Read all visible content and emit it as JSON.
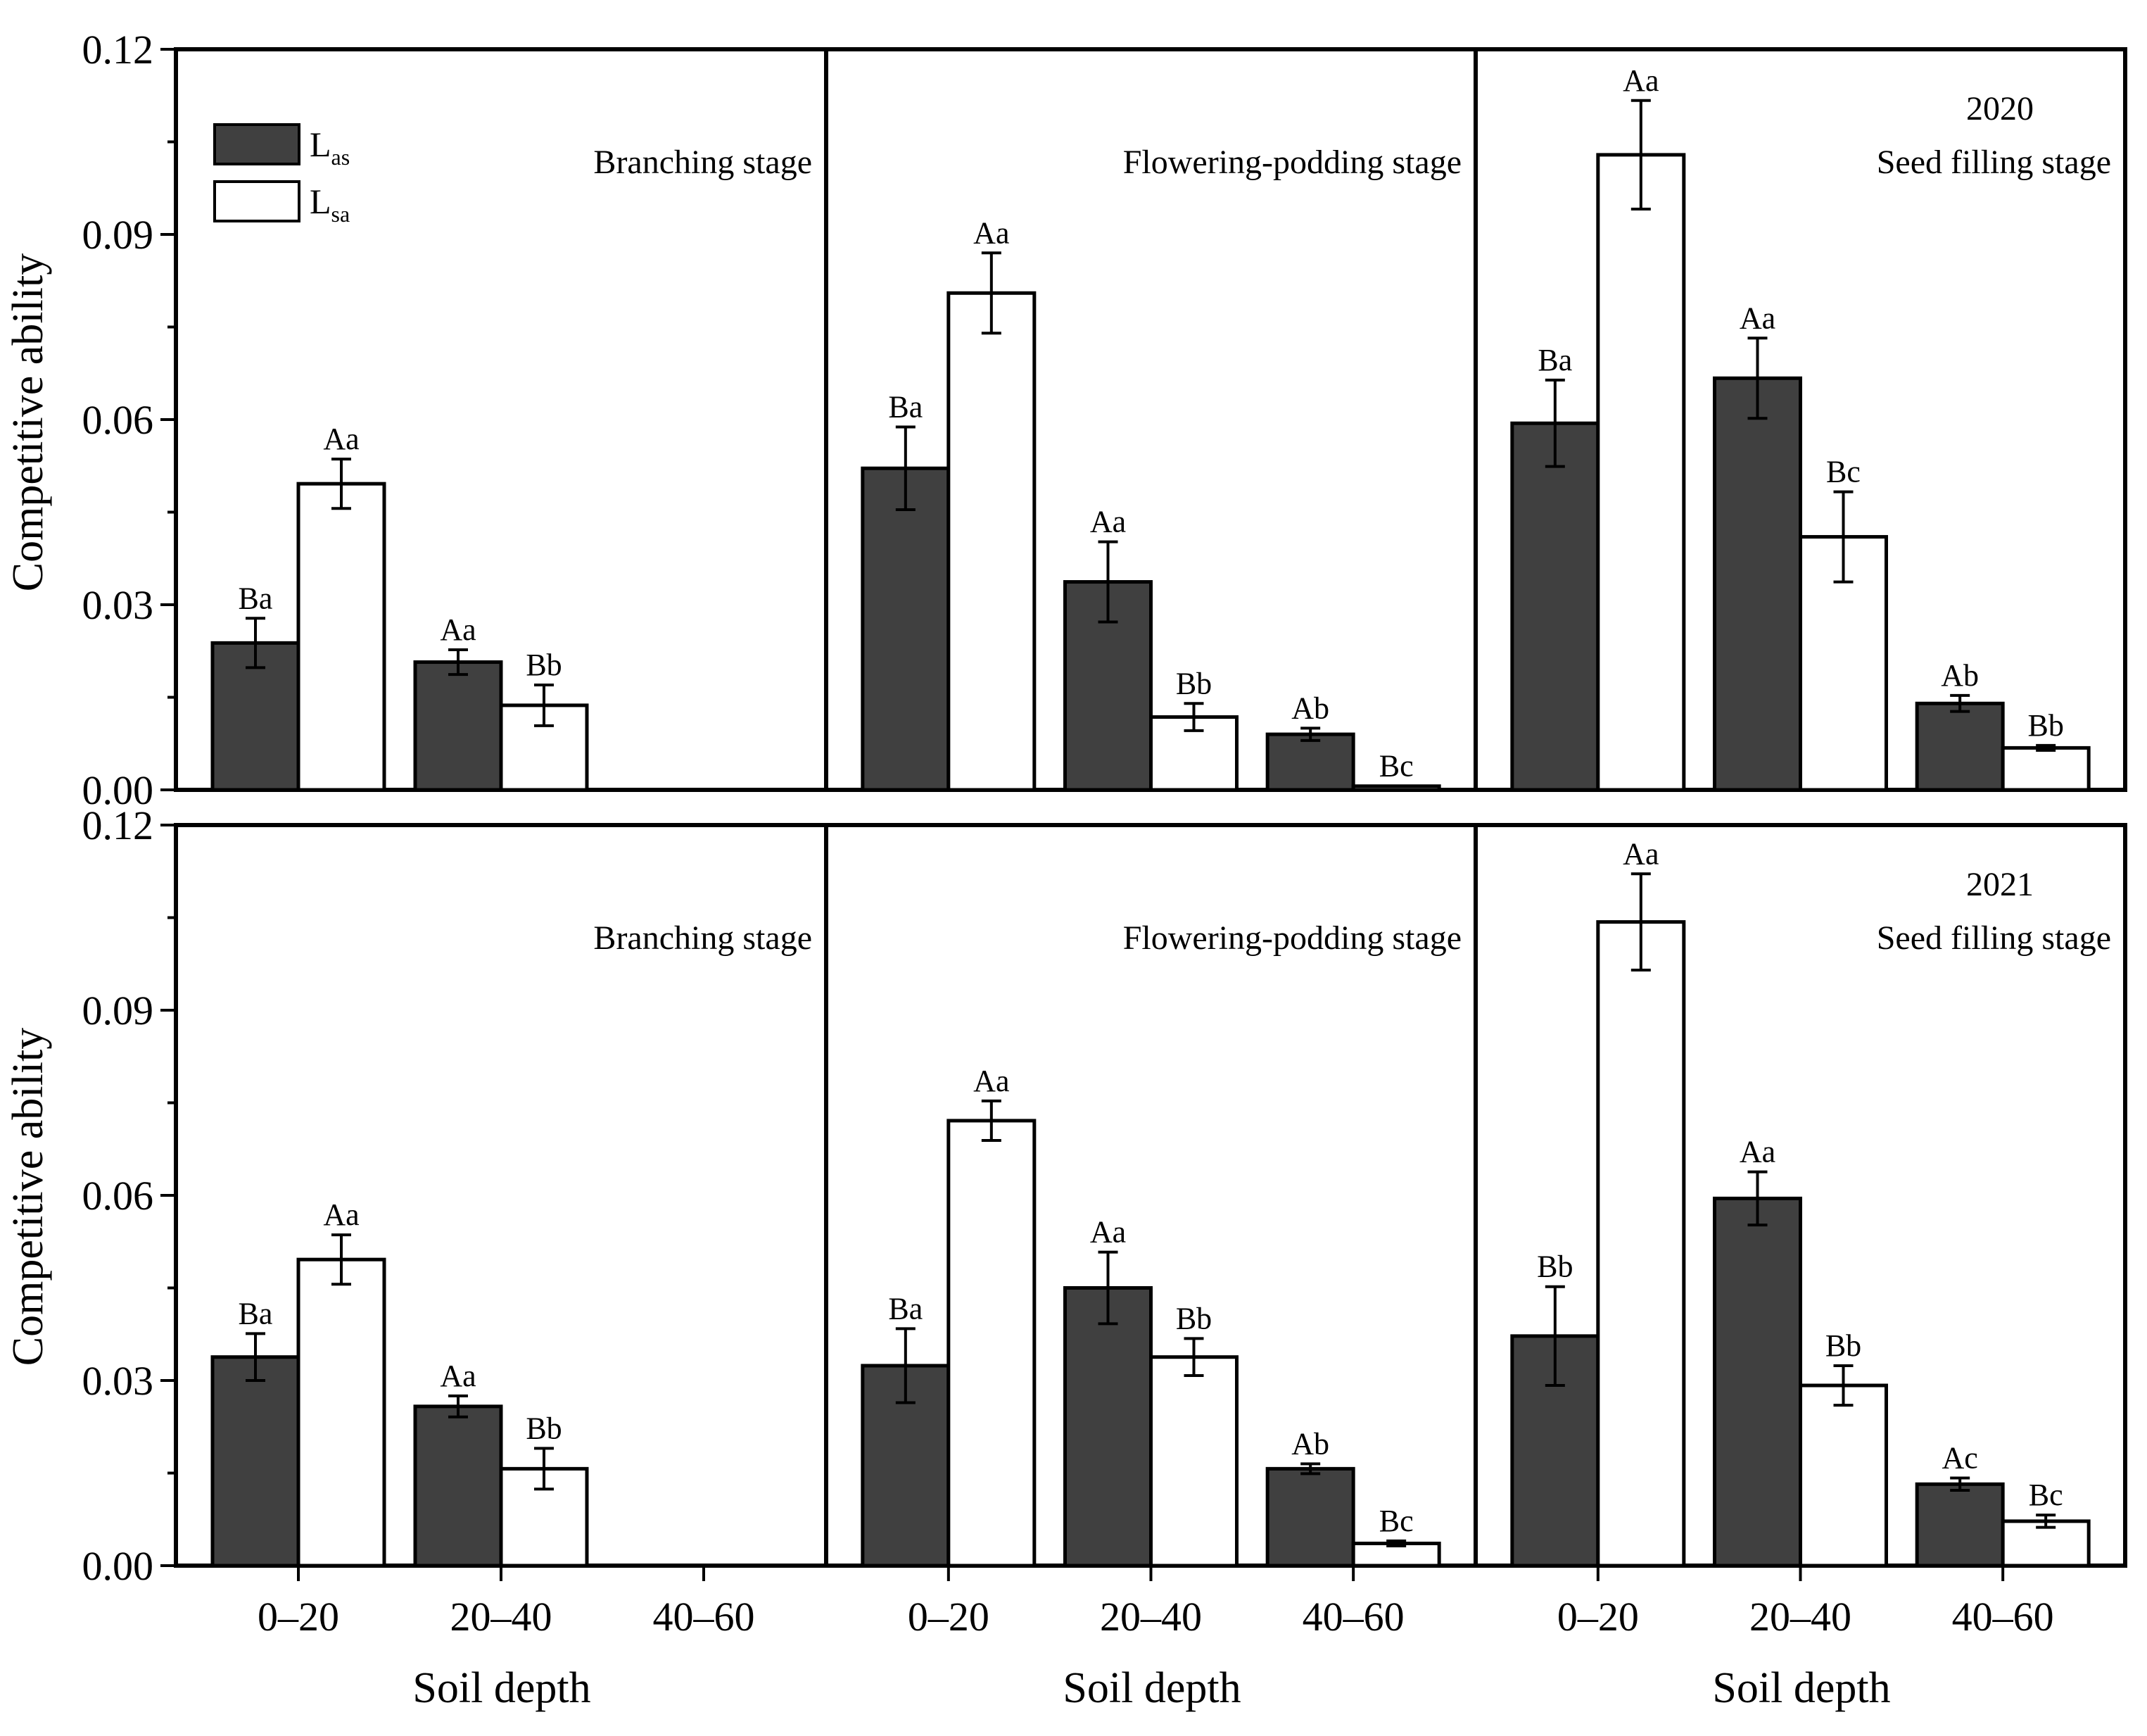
{
  "chart_data": {
    "type": "bar",
    "ylabel": "Competitive ability",
    "xlabel": "Soil depth",
    "ylim": [
      0,
      0.12
    ],
    "y_ticks": [
      "0.00",
      "0.03",
      "0.06",
      "0.09",
      "0.12"
    ],
    "categories": [
      "0–20",
      "20–40",
      "40–60"
    ],
    "legend": {
      "position": "top-left",
      "entries": [
        {
          "base": "L",
          "sub": "as",
          "color": "#404040"
        },
        {
          "base": "L",
          "sub": "sa",
          "color": "#ffffff"
        }
      ]
    },
    "panels": [
      {
        "year": "",
        "stage": "Branching stage",
        "las": [
          0.0238,
          0.0207,
          0
        ],
        "las_err": [
          0.004,
          0.002,
          0
        ],
        "lsa": [
          0.0496,
          0.0137,
          0
        ],
        "lsa_err": [
          0.004,
          0.0033,
          0
        ],
        "las_sig": [
          "Ba",
          "Aa",
          ""
        ],
        "lsa_sig": [
          "Aa",
          "Bb",
          ""
        ]
      },
      {
        "year": "",
        "stage": "Flowering-podding stage",
        "las": [
          0.0521,
          0.0337,
          0.009
        ],
        "las_err": [
          0.0067,
          0.0065,
          0.001
        ],
        "lsa": [
          0.0805,
          0.0118,
          0.0006
        ],
        "lsa_err": [
          0.0065,
          0.0022,
          0
        ],
        "las_sig": [
          "Ba",
          "Aa",
          "Ab"
        ],
        "lsa_sig": [
          "Aa",
          "Bb",
          "Bc"
        ]
      },
      {
        "year": "2020",
        "stage": "Seed filling stage",
        "las": [
          0.0594,
          0.0667,
          0.014
        ],
        "las_err": [
          0.007,
          0.0065,
          0.0013
        ],
        "lsa": [
          0.1029,
          0.041,
          0.0068
        ],
        "lsa_err": [
          0.0088,
          0.0073,
          0.0004
        ],
        "las_sig": [
          "Ba",
          "Aa",
          "Ab"
        ],
        "lsa_sig": [
          "Aa",
          "Bc",
          "Bb"
        ]
      },
      {
        "year": "",
        "stage": "Branching stage",
        "las": [
          0.0338,
          0.0258,
          0
        ],
        "las_err": [
          0.0038,
          0.0017,
          0
        ],
        "lsa": [
          0.0496,
          0.0157,
          0
        ],
        "lsa_err": [
          0.004,
          0.0033,
          0
        ],
        "las_sig": [
          "Ba",
          "Aa",
          ""
        ],
        "lsa_sig": [
          "Aa",
          "Bb",
          ""
        ]
      },
      {
        "year": "",
        "stage": "Flowering-podding stage",
        "las": [
          0.0324,
          0.045,
          0.0157
        ],
        "las_err": [
          0.006,
          0.0058,
          0.0008
        ],
        "lsa": [
          0.0721,
          0.0338,
          0.0036
        ],
        "lsa_err": [
          0.0032,
          0.003,
          0.0004
        ],
        "las_sig": [
          "Ba",
          "Aa",
          "Ab"
        ],
        "lsa_sig": [
          "Aa",
          "Bb",
          "Bc"
        ]
      },
      {
        "year": "2021",
        "stage": "Seed filling stage",
        "las": [
          0.0372,
          0.0595,
          0.0132
        ],
        "las_err": [
          0.008,
          0.0043,
          0.001
        ],
        "lsa": [
          0.1043,
          0.0292,
          0.0072
        ],
        "lsa_err": [
          0.0078,
          0.0032,
          0.001
        ],
        "las_sig": [
          "Bb",
          "Aa",
          "Ac"
        ],
        "lsa_sig": [
          "Aa",
          "Bb",
          "Bc"
        ]
      }
    ]
  }
}
